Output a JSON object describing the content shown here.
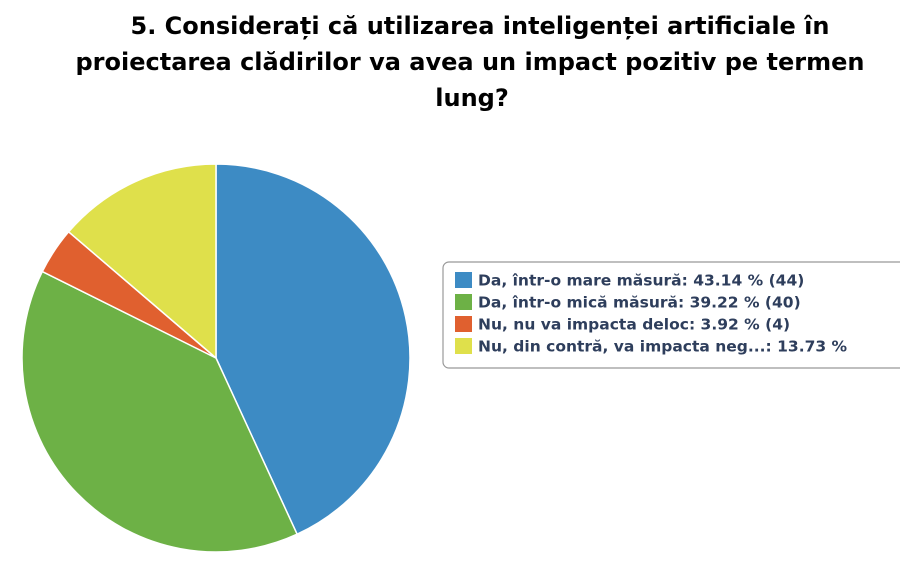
{
  "chart_data": {
    "type": "pie",
    "title": [
      "5. Considerați că utilizarea inteligenței artificiale în",
      "proiectarea clădirilor va avea un impact pozitiv pe termen",
      "lung?"
    ],
    "categories": [
      "Da, într-o mare măsură: 43.14 % (44)",
      "Da, într-o mică măsură: 39.22 % (40)",
      "Nu, nu va impacta deloc: 3.92 % (4)",
      "Nu, din contră, va impacta neg...: 13.73 %"
    ],
    "values": [
      43.14,
      39.22,
      3.92,
      13.73
    ],
    "colors": [
      "#3d8bc4",
      "#6db146",
      "#e0602f",
      "#dfe04b"
    ],
    "legend": "right"
  }
}
